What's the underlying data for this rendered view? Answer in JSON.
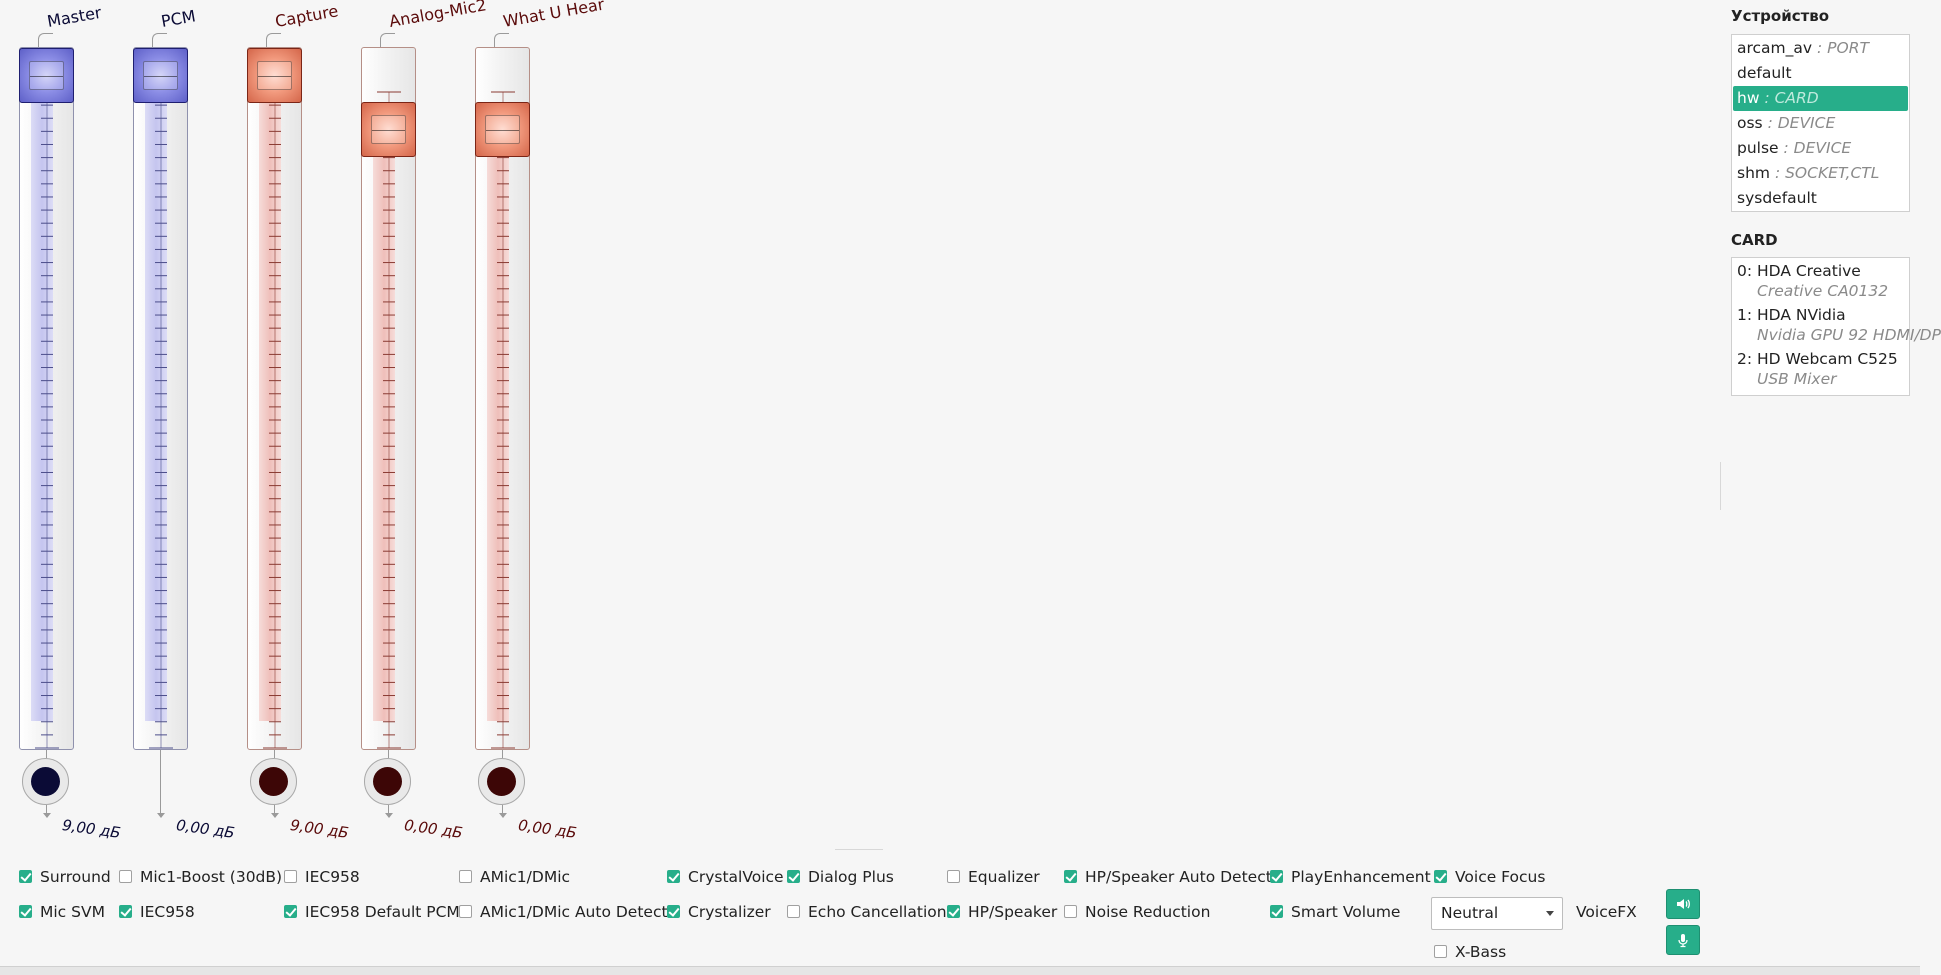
{
  "faders": [
    {
      "label": "Master",
      "value": "9,00 дБ",
      "color": "blue",
      "level": 1.0,
      "leader": true
    },
    {
      "label": "PCM",
      "value": "0,00 дБ",
      "color": "blue",
      "level": 1.0,
      "leader": true,
      "no_knob": true
    },
    {
      "label": "Capture",
      "value": "9,00 дБ",
      "color": "red",
      "level": 1.0,
      "leader": true
    },
    {
      "label": "Analog-Mic2",
      "value": "0,00 дБ",
      "color": "red",
      "level": 0.91,
      "leader": true
    },
    {
      "label": "What U Hear",
      "value": "0,00 дБ",
      "color": "red",
      "level": 0.91,
      "leader": true
    }
  ],
  "device": {
    "title": "Устройство",
    "items": [
      {
        "name": "arcam_av",
        "type": ": PORT",
        "selected": false
      },
      {
        "name": "default",
        "type": "",
        "selected": false
      },
      {
        "name": "hw",
        "type": ": CARD",
        "selected": true
      },
      {
        "name": "oss",
        "type": ": DEVICE",
        "selected": false
      },
      {
        "name": "pulse",
        "type": ": DEVICE",
        "selected": false
      },
      {
        "name": "shm",
        "type": ": SOCKET,CTL",
        "selected": false
      },
      {
        "name": "sysdefault",
        "type": "",
        "selected": false
      }
    ]
  },
  "card": {
    "title": "CARD",
    "items": [
      {
        "index": "0:",
        "name": "HDA Creative",
        "sub": "Creative CA0132"
      },
      {
        "index": "1:",
        "name": "HDA NVidia",
        "sub": "Nvidia GPU 92 HDMI/DP"
      },
      {
        "index": "2:",
        "name": "HD Webcam C525",
        "sub": "USB Mixer"
      }
    ]
  },
  "switches_row1": [
    {
      "label": "Surround",
      "checked": true
    },
    {
      "label": "Mic1-Boost (30dB)",
      "checked": false
    },
    {
      "label": "IEC958",
      "checked": false
    },
    {
      "label": "AMic1/DMic",
      "checked": false
    },
    {
      "label": "CrystalVoice",
      "checked": true
    },
    {
      "label": "Dialog Plus",
      "checked": true
    },
    {
      "label": "Equalizer",
      "checked": false
    },
    {
      "label": "HP/Speaker Auto Detect",
      "checked": true
    },
    {
      "label": "PlayEnhancement",
      "checked": true
    },
    {
      "label": "Voice Focus",
      "checked": true
    }
  ],
  "switches_row2": [
    {
      "label": "Mic SVM",
      "checked": true
    },
    {
      "label": "IEC958",
      "checked": true
    },
    {
      "label": "IEC958 Default PCM",
      "checked": true
    },
    {
      "label": "AMic1/DMic Auto Detect",
      "checked": false
    },
    {
      "label": "Crystalizer",
      "checked": true
    },
    {
      "label": "Echo Cancellation",
      "checked": false
    },
    {
      "label": "HP/Speaker",
      "checked": true
    },
    {
      "label": "Noise Reduction",
      "checked": false
    },
    {
      "label": "Smart Volume",
      "checked": true
    }
  ],
  "switches_row3": [
    {
      "label": "X-Bass",
      "checked": false
    }
  ],
  "voicefx": {
    "selected": "Neutral",
    "label": "VoiceFX"
  },
  "colors": {
    "accent": "#27ae8a",
    "blue_knob": "#0b0b36",
    "red_knob": "#3d0606"
  },
  "icons": {
    "playback": "speaker-icon",
    "capture": "microphone-icon"
  }
}
